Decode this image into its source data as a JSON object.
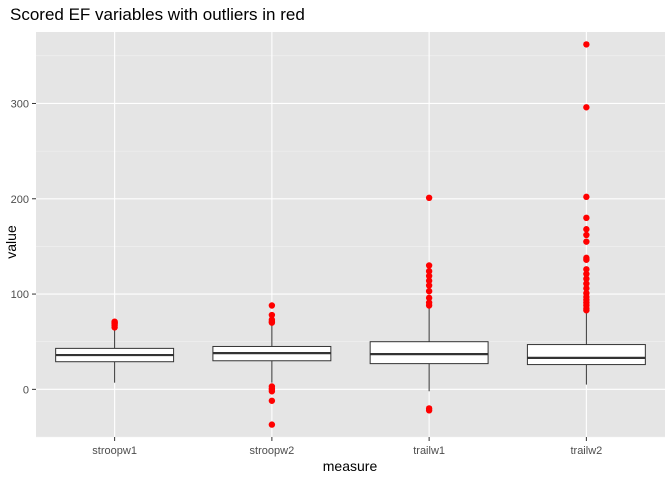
{
  "chart_data": {
    "type": "boxplot",
    "title": "Scored EF variables with outliers in red",
    "xlabel": "measure",
    "ylabel": "value",
    "categories": [
      "stroopw1",
      "stroopw2",
      "trailw1",
      "trailw2"
    ],
    "ylim": [
      -50,
      375
    ],
    "yticks": [
      0,
      100,
      200,
      300
    ],
    "grid": true,
    "legend": "none",
    "colors": {
      "panel_background": "#e5e5e5",
      "grid_major": "#ffffff",
      "grid_minor": "#f2f2f2",
      "box_fill": "#ffffff",
      "box_stroke": "#333333",
      "outlier": "#ff0000"
    },
    "boxes": [
      {
        "category": "stroopw1",
        "lower_whisker": 7,
        "q1": 29,
        "median": 36,
        "q3": 43,
        "upper_whisker": 63,
        "outliers": [
          65,
          67,
          69,
          70,
          71
        ]
      },
      {
        "category": "stroopw2",
        "lower_whisker": 7,
        "q1": 30,
        "median": 38,
        "q3": 45,
        "upper_whisker": 67,
        "outliers": [
          88,
          78,
          73,
          71,
          70,
          3,
          1,
          0,
          -2,
          -12,
          -37
        ]
      },
      {
        "category": "trailw1",
        "lower_whisker": -2,
        "q1": 27,
        "median": 37,
        "q3": 50,
        "upper_whisker": 85,
        "outliers": [
          201,
          130,
          124,
          119,
          114,
          109,
          103,
          96,
          91,
          88,
          -20,
          -22
        ]
      },
      {
        "category": "trailw2",
        "lower_whisker": 5,
        "q1": 26,
        "median": 33,
        "q3": 47,
        "upper_whisker": 80,
        "outliers": [
          362,
          296,
          202,
          180,
          168,
          162,
          155,
          138,
          136,
          126,
          121,
          116,
          111,
          106,
          101,
          97,
          94,
          91,
          88,
          85,
          83
        ]
      }
    ]
  }
}
